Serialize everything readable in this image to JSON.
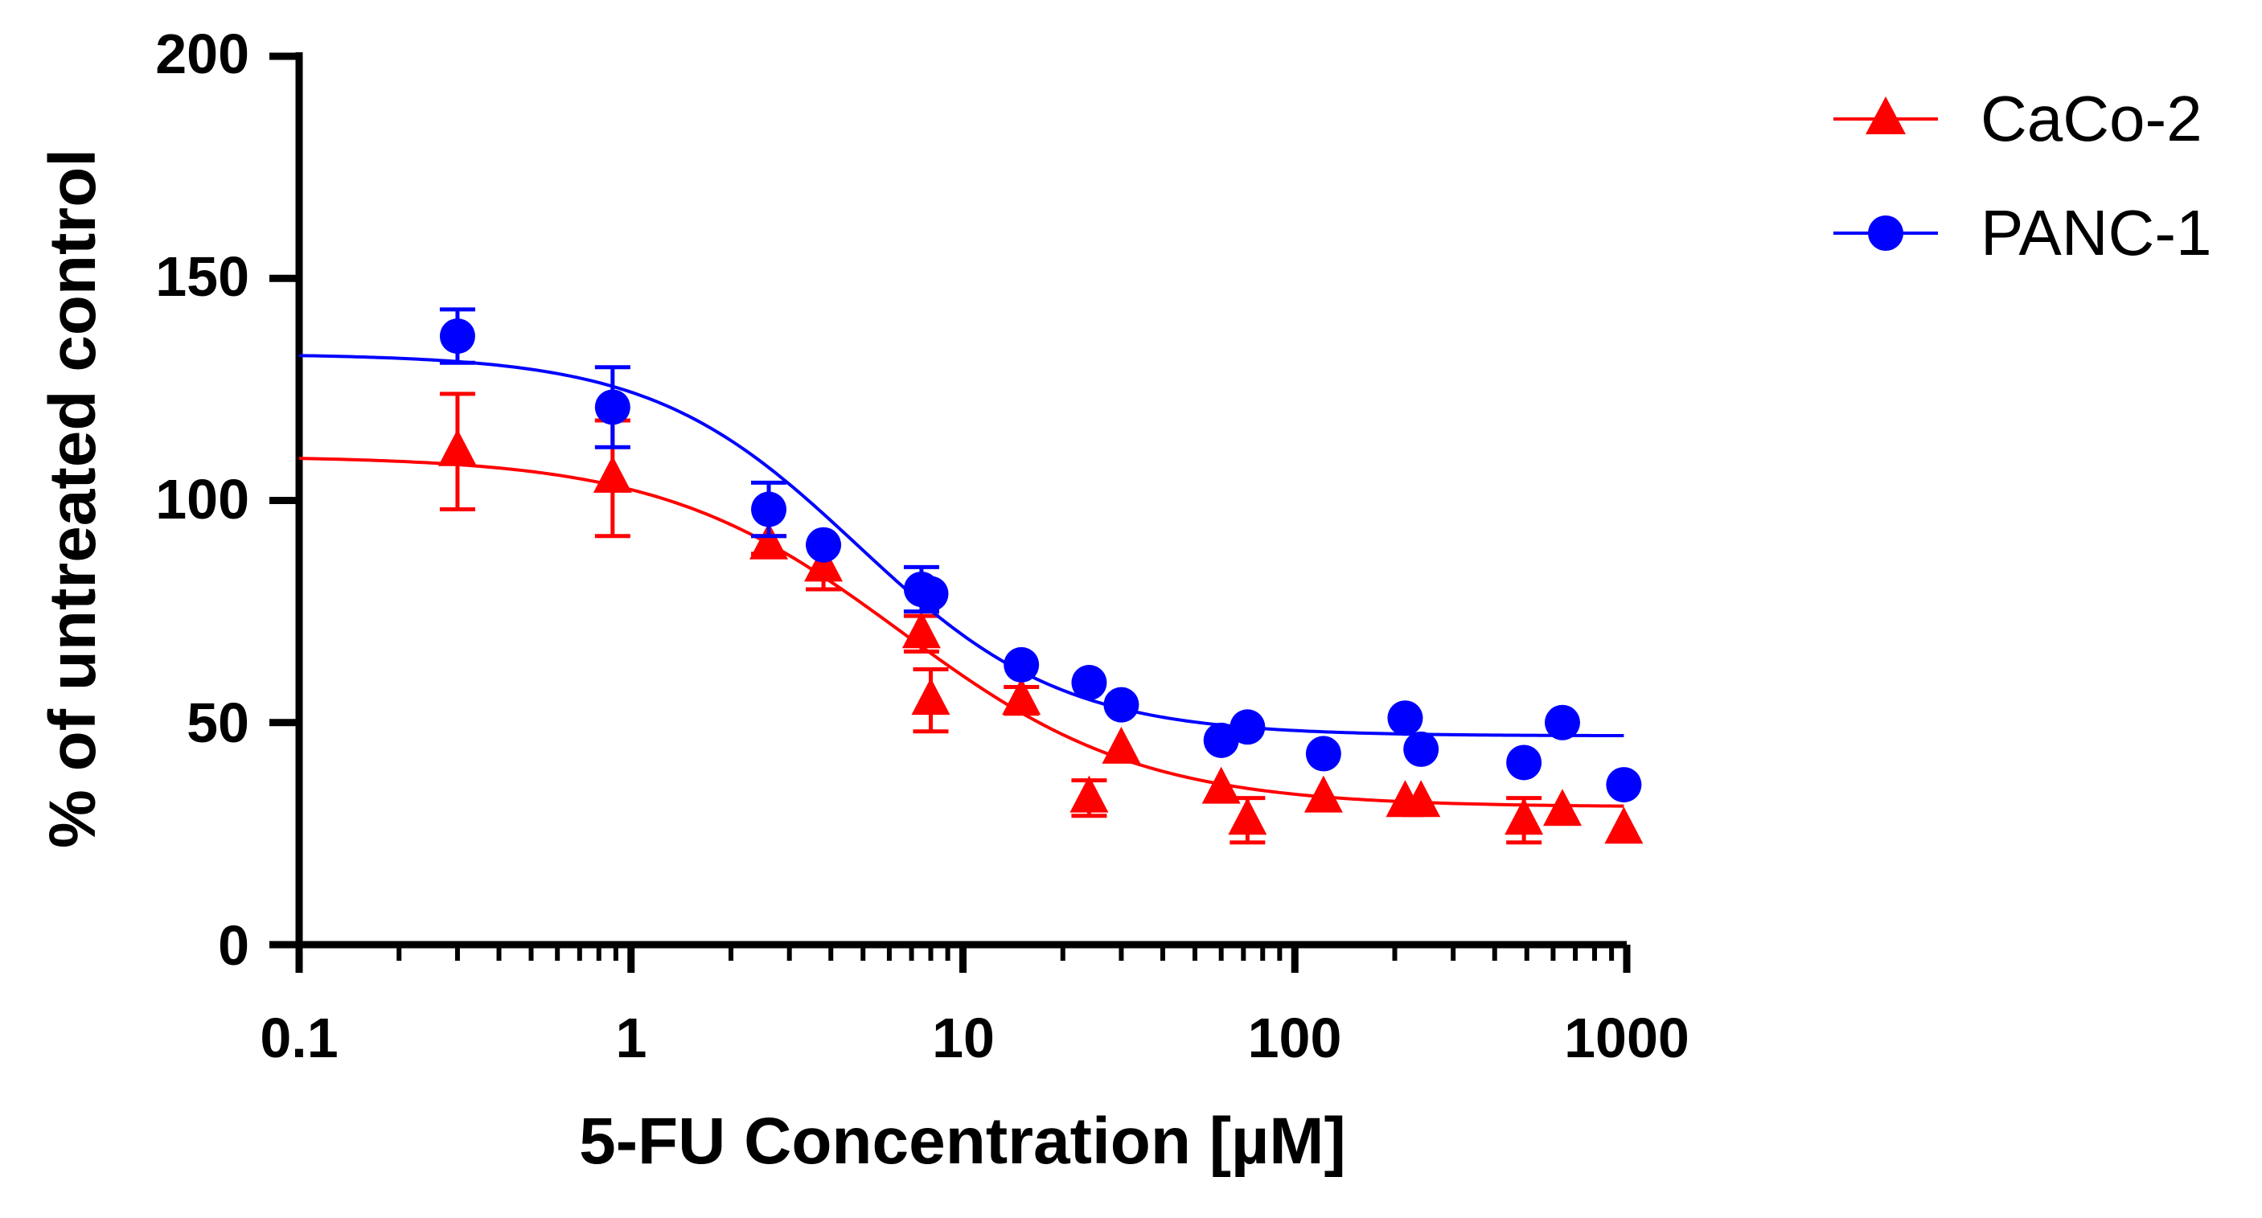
{
  "chart_data": {
    "type": "scatter",
    "xscale": "log",
    "xlim": [
      0.1,
      1000
    ],
    "ylim": [
      0,
      200
    ],
    "xticks": [
      "0.1",
      "1",
      "10",
      "100",
      "1000"
    ],
    "yticks": [
      "0",
      "50",
      "100",
      "150",
      "200"
    ],
    "xlabel": "5-FU Concentration [µM]",
    "ylabel": "% of untreated control",
    "legend_position": "top-right",
    "series": [
      {
        "name": "CaCo-2",
        "color": "#ff0000",
        "marker": "triangle",
        "x": [
          0.3,
          0.88,
          2.6,
          3.8,
          7.5,
          8,
          15,
          24,
          30,
          60,
          72,
          122,
          215,
          240,
          490,
          640,
          980
        ],
        "y": [
          111,
          105,
          90,
          85,
          70,
          55,
          55,
          33,
          44,
          35,
          28,
          33,
          32,
          32,
          28,
          30,
          26
        ],
        "error": [
          13,
          13,
          2,
          5,
          4,
          7,
          3,
          4,
          0,
          0,
          5,
          0,
          0,
          0,
          5,
          0,
          0
        ],
        "fit": {
          "bottom": 31,
          "top": 110,
          "ec50": 6.5,
          "hill": 1.2
        }
      },
      {
        "name": "PANC-1",
        "color": "#0000ff",
        "marker": "circle",
        "x": [
          0.3,
          0.88,
          2.6,
          3.8,
          7.5,
          8,
          15,
          24,
          30,
          60,
          72,
          122,
          215,
          240,
          490,
          640,
          980
        ],
        "y": [
          137,
          121,
          98,
          90,
          80,
          79,
          63,
          59,
          54,
          46,
          49,
          43,
          51,
          44,
          41,
          50,
          36
        ],
        "error": [
          6,
          9,
          6,
          0,
          5,
          0,
          0,
          0,
          0,
          0,
          0,
          0,
          0,
          0,
          0,
          0,
          0
        ],
        "fit": {
          "bottom": 47,
          "top": 133,
          "ec50": 4.8,
          "hill": 1.4
        }
      }
    ]
  }
}
